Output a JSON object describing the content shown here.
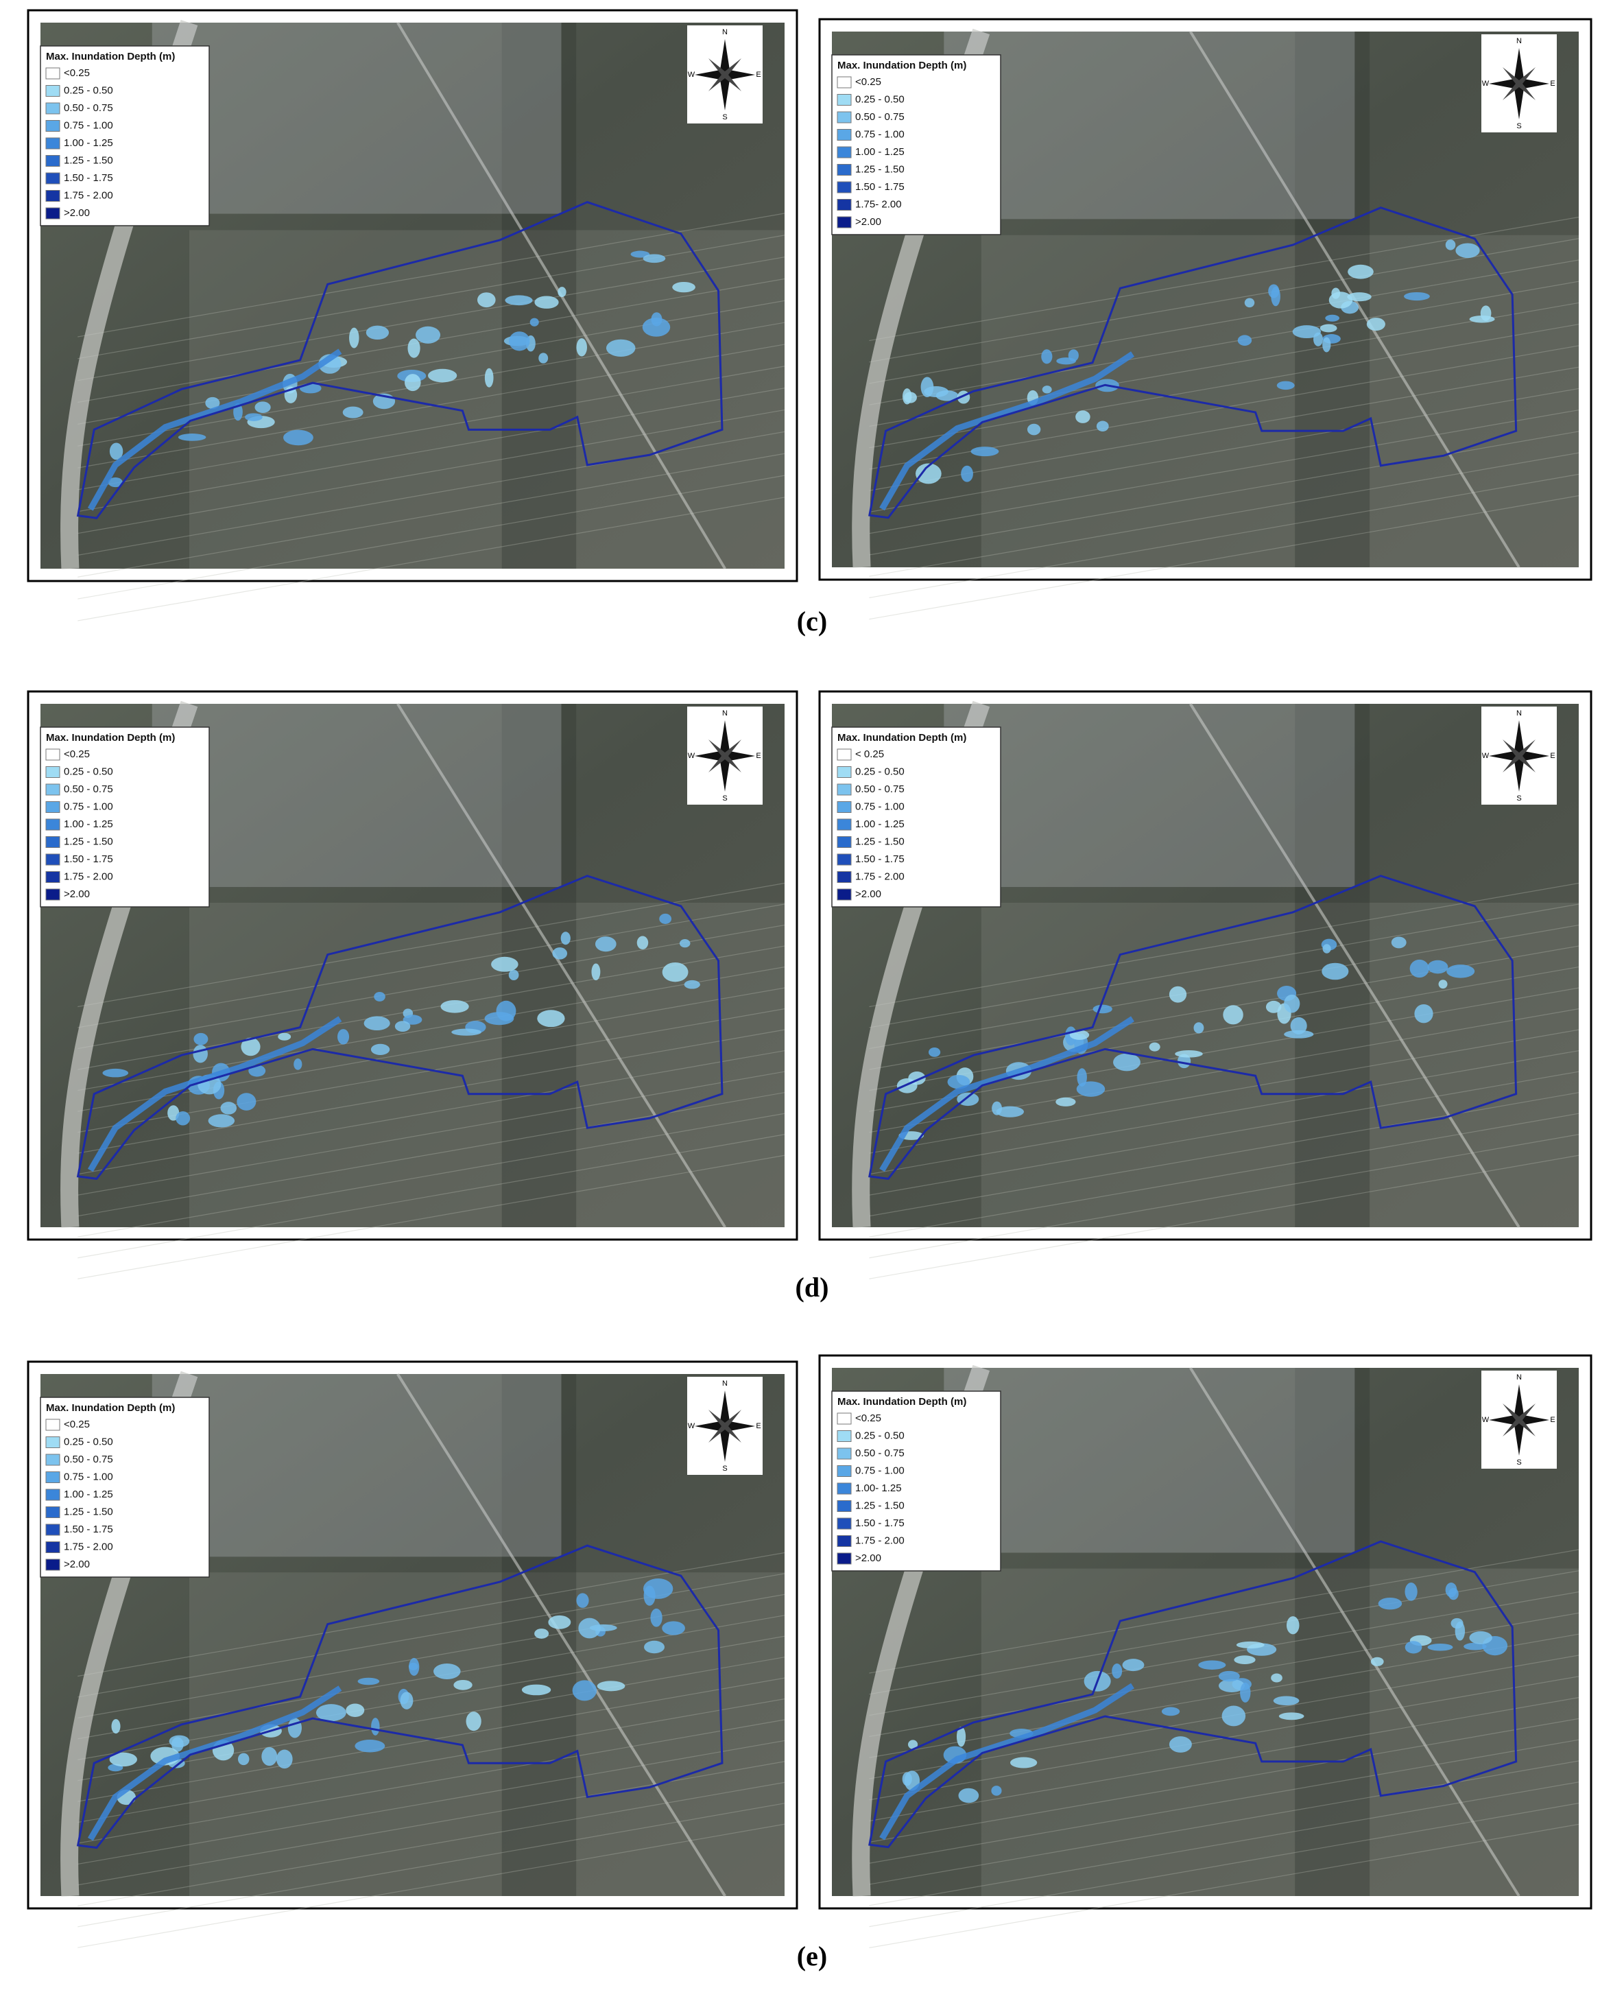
{
  "panels": [
    {
      "legend_title": "Max. Inundation Depth (m)",
      "legend_items": [
        "<0.25",
        "0.25 - 0.50",
        "0.50 - 0.75",
        "0.75 - 1.00",
        "1.00 - 1.25",
        "1.25 - 1.50",
        "1.50 - 1.75",
        "1.75 - 2.00",
        ">2.00"
      ],
      "compass": {
        "n": "N",
        "e": "E",
        "s": "S",
        "w": "W"
      }
    },
    {
      "legend_title": "Max. Inundation Depth (m)",
      "legend_items": [
        "<0.25",
        "0.25 - 0.50",
        "0.50 - 0.75",
        "0.75 - 1.00",
        "1.00 - 1.25",
        "1.25 - 1.50",
        "1.50 - 1.75",
        "1.75- 2.00",
        ">2.00"
      ],
      "compass": {
        "n": "N",
        "e": "E",
        "s": "S",
        "w": "W"
      }
    },
    {
      "legend_title": "Max. Inundation Depth (m)",
      "legend_items": [
        "<0.25",
        "0.25 - 0.50",
        "0.50 - 0.75",
        "0.75 - 1.00",
        "1.00 - 1.25",
        "1.25 - 1.50",
        "1.50 - 1.75",
        "1.75 - 2.00",
        ">2.00"
      ],
      "compass": {
        "n": "N",
        "e": "E",
        "s": "S",
        "w": "W"
      }
    },
    {
      "legend_title": "Max. Inundation Depth (m)",
      "legend_items": [
        "< 0.25",
        "0.25 - 0.50",
        "0.50 - 0.75",
        "0.75 - 1.00",
        "1.00 - 1.25",
        "1.25 - 1.50",
        "1.50 - 1.75",
        "1.75 - 2.00",
        ">2.00"
      ],
      "compass": {
        "n": "N",
        "e": "E",
        "s": "S",
        "w": "W"
      }
    },
    {
      "legend_title": "Max. Inundation Depth (m)",
      "legend_items": [
        "<0.25",
        "0.25 - 0.50",
        "0.50 - 0.75",
        "0.75 - 1.00",
        "1.00 - 1.25",
        "1.25 - 1.50",
        "1.50 - 1.75",
        "1.75 - 2.00",
        ">2.00"
      ],
      "compass": {
        "n": "N",
        "e": "E",
        "s": "S",
        "w": "W"
      }
    },
    {
      "legend_title": "Max. Inundation Depth (m)",
      "legend_items": [
        "<0.25",
        "0.25 - 0.50",
        "0.50 - 0.75",
        "0.75 - 1.00",
        "1.00- 1.25",
        "1.25 - 1.50",
        "1.50 - 1.75",
        "1.75 - 2.00",
        ">2.00"
      ],
      "compass": {
        "n": "N",
        "e": "E",
        "s": "S",
        "w": "W"
      }
    }
  ],
  "captions": [
    "(c)",
    "(d)",
    "(e)"
  ]
}
